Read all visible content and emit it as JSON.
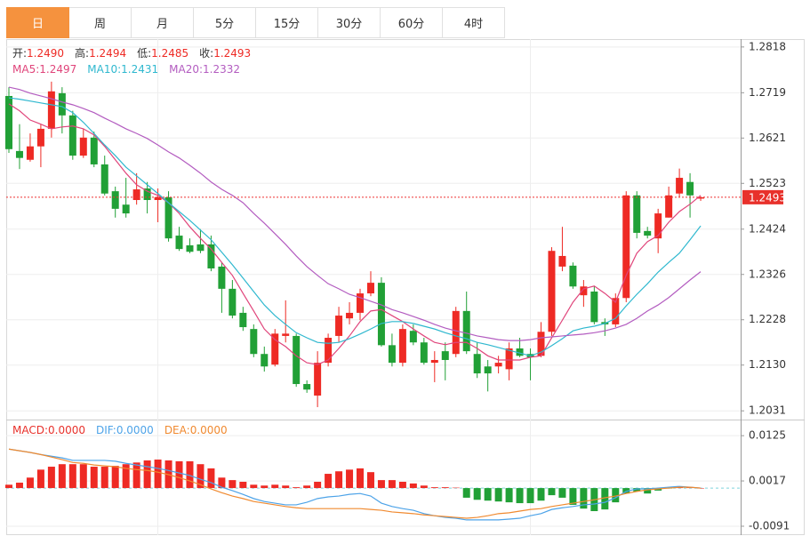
{
  "tabs": [
    "日",
    "周",
    "月",
    "5分",
    "15分",
    "30分",
    "60分",
    "4时"
  ],
  "active_tab": 0,
  "chart_data": [
    {
      "type": "candlestick",
      "ohlc_labels": [
        {
          "name": "开:",
          "value": "1.2490"
        },
        {
          "name": "高:",
          "value": "1.2494"
        },
        {
          "name": "低:",
          "value": "1.2485"
        },
        {
          "name": "收:",
          "value": "1.2493"
        }
      ],
      "up_color": "#ee2a24",
      "down_color": "#21a036",
      "candles": {
        "open": [
          1.2712,
          1.2593,
          1.2574,
          1.2603,
          1.2641,
          1.2718,
          1.267,
          1.2583,
          1.2622,
          1.2564,
          1.2506,
          1.2477,
          1.2487,
          1.2512,
          1.2487,
          1.2493,
          1.241,
          1.2389,
          1.2391,
          1.2391,
          1.2343,
          1.2295,
          1.2243,
          1.2208,
          1.2154,
          1.2131,
          1.2193,
          1.2193,
          1.2089,
          1.2064,
          1.2135,
          1.2193,
          1.2231,
          1.2243,
          1.2285,
          1.2308,
          1.2173,
          1.2135,
          1.2204,
          1.2179,
          1.2135,
          1.216,
          1.2154,
          1.2247,
          1.2154,
          1.2127,
          1.2127,
          1.2121,
          1.2166,
          1.2154,
          1.215,
          1.2202,
          1.2343,
          1.2345,
          1.2281,
          1.2289,
          1.2223,
          1.2218,
          1.2275,
          1.2497,
          1.242,
          1.2404,
          1.2449,
          1.2501,
          1.2526,
          1.249
        ],
        "high": [
          1.2731,
          1.2651,
          1.2631,
          1.2651,
          1.2743,
          1.2731,
          1.268,
          1.2641,
          1.2635,
          1.2583,
          1.2516,
          1.2535,
          1.2545,
          1.2526,
          1.2512,
          1.2506,
          1.2429,
          1.2404,
          1.2424,
          1.241,
          1.2352,
          1.2314,
          1.2256,
          1.2218,
          1.217,
          1.2208,
          1.227,
          1.2198,
          1.2097,
          1.216,
          1.2198,
          1.2256,
          1.2266,
          1.2295,
          1.2333,
          1.232,
          1.2198,
          1.2218,
          1.2218,
          1.2189,
          1.216,
          1.2179,
          1.2256,
          1.2289,
          1.2179,
          1.2141,
          1.215,
          1.2179,
          1.2189,
          1.2166,
          1.2223,
          1.2385,
          1.2429,
          1.2352,
          1.2314,
          1.23,
          1.2231,
          1.2285,
          1.2506,
          1.2506,
          1.2429,
          1.2468,
          1.2516,
          1.2555,
          1.2545,
          1.2494
        ],
        "low": [
          1.2589,
          1.2554,
          1.257,
          1.2558,
          1.2622,
          1.2631,
          1.2574,
          1.2578,
          1.2558,
          1.2497,
          1.2449,
          1.2449,
          1.2477,
          1.2458,
          1.2439,
          1.2397,
          1.2377,
          1.2372,
          1.2372,
          1.2333,
          1.2243,
          1.2231,
          1.2204,
          1.2147,
          1.2116,
          1.2127,
          1.2179,
          1.2083,
          1.207,
          1.2039,
          1.2127,
          1.2179,
          1.2218,
          1.2227,
          1.2279,
          1.217,
          1.2127,
          1.2127,
          1.2173,
          1.2131,
          1.2093,
          1.2097,
          1.2147,
          1.2154,
          1.2102,
          1.2073,
          1.2112,
          1.2097,
          1.2147,
          1.2097,
          1.2147,
          1.2193,
          1.2333,
          1.2295,
          1.2256,
          1.2218,
          1.2193,
          1.2212,
          1.2266,
          1.2404,
          1.2404,
          1.2372,
          1.2449,
          1.2493,
          1.2449,
          1.2485
        ],
        "close": [
          1.2597,
          1.2578,
          1.2603,
          1.2641,
          1.2722,
          1.267,
          1.2583,
          1.2622,
          1.2564,
          1.2501,
          1.2468,
          1.2458,
          1.251,
          1.2487,
          1.2493,
          1.2404,
          1.2381,
          1.2375,
          1.2377,
          1.2339,
          1.2295,
          1.2237,
          1.2212,
          1.2154,
          1.2127,
          1.2198,
          1.2198,
          1.2089,
          1.2077,
          1.2135,
          1.2189,
          1.2237,
          1.2243,
          1.2285,
          1.2308,
          1.2173,
          1.2135,
          1.2208,
          1.2179,
          1.2135,
          1.2141,
          1.2141,
          1.2247,
          1.216,
          1.2112,
          1.2112,
          1.2135,
          1.2166,
          1.215,
          1.2147,
          1.2202,
          1.2377,
          1.2366,
          1.23,
          1.23,
          1.2223,
          1.2218,
          1.2275,
          1.2497,
          1.2416,
          1.241,
          1.2458,
          1.2497,
          1.2535,
          1.2497,
          1.2493
        ]
      },
      "series": [
        {
          "name": "MA5:",
          "color": "#e0457b",
          "last_label": "1.2497",
          "values": [
            1.2695,
            1.268,
            1.266,
            1.2651,
            1.2641,
            1.2645,
            1.2647,
            1.2641,
            1.2628,
            1.2603,
            1.2574,
            1.2545,
            1.252,
            1.2506,
            1.2497,
            1.2481,
            1.2458,
            1.2429,
            1.2404,
            1.2381,
            1.2352,
            1.2324,
            1.2285,
            1.2247,
            1.2208,
            1.2185,
            1.217,
            1.215,
            1.2135,
            1.2131,
            1.2141,
            1.2166,
            1.2193,
            1.2224,
            1.2247,
            1.225,
            1.2237,
            1.2224,
            1.2208,
            1.2193,
            1.2179,
            1.2174,
            1.2179,
            1.2179,
            1.2166,
            1.215,
            1.2141,
            1.2141,
            1.2141,
            1.2147,
            1.215,
            1.2189,
            1.2227,
            1.2266,
            1.2295,
            1.2301,
            1.2285,
            1.2266,
            1.2324,
            1.2372,
            1.2397,
            1.241,
            1.2439,
            1.2462,
            1.2478,
            1.2497
          ]
        },
        {
          "name": "MA10:",
          "color": "#2fb8cf",
          "last_label": "1.2431",
          "values": [
            1.2708,
            1.2705,
            1.2701,
            1.2697,
            1.2693,
            1.2689,
            1.2676,
            1.2655,
            1.2631,
            1.2606,
            1.2583,
            1.2558,
            1.2539,
            1.252,
            1.2501,
            1.2481,
            1.2462,
            1.2443,
            1.2422,
            1.2401,
            1.2374,
            1.2347,
            1.2318,
            1.2289,
            1.226,
            1.2237,
            1.2218,
            1.22,
            1.2189,
            1.2179,
            1.2177,
            1.2179,
            1.2187,
            1.2197,
            1.2208,
            1.222,
            1.2224,
            1.2224,
            1.222,
            1.2214,
            1.2208,
            1.22,
            1.2193,
            1.2187,
            1.2179,
            1.2174,
            1.2168,
            1.2162,
            1.2156,
            1.215,
            1.2158,
            1.2172,
            1.2187,
            1.2204,
            1.221,
            1.2214,
            1.222,
            1.2231,
            1.2258,
            1.2283,
            1.2306,
            1.2331,
            1.2352,
            1.2372,
            1.2401,
            1.2431
          ]
        },
        {
          "name": "MA20:",
          "color": "#b35cc0",
          "last_label": "1.2332",
          "values": [
            1.2731,
            1.2726,
            1.2718,
            1.2712,
            1.2706,
            1.2699,
            1.2693,
            1.2685,
            1.2676,
            1.2664,
            1.2653,
            1.2641,
            1.2631,
            1.262,
            1.2606,
            1.2591,
            1.2578,
            1.2562,
            1.2545,
            1.2526,
            1.251,
            1.2497,
            1.2481,
            1.2458,
            1.2437,
            1.2414,
            1.2391,
            1.2366,
            1.2343,
            1.2324,
            1.2306,
            1.2295,
            1.2283,
            1.2276,
            1.2268,
            1.226,
            1.225,
            1.2243,
            1.2235,
            1.2227,
            1.2218,
            1.221,
            1.2204,
            1.2199,
            1.2193,
            1.2189,
            1.2185,
            1.2183,
            1.2183,
            1.2185,
            1.2189,
            1.2191,
            1.2193,
            1.2195,
            1.2197,
            1.22,
            1.2204,
            1.221,
            1.2218,
            1.2231,
            1.2247,
            1.226,
            1.2276,
            1.2295,
            1.2314,
            1.2332
          ]
        }
      ],
      "last_price": 1.2493,
      "ylim": [
        1.2016,
        1.2835
      ],
      "yticks": [
        1.2818,
        1.2719,
        1.2621,
        1.2523,
        1.2424,
        1.2326,
        1.2228,
        {
          "value": 1.213,
          "label": "1.2130"
        },
        1.2031
      ],
      "grid": true
    },
    {
      "type": "macd",
      "up_color": "#ee2a24",
      "down_color": "#21a036",
      "series": [
        {
          "name": "MACD:",
          "color": "#e8312b",
          "style": "bar",
          "last_label": "0.0000",
          "values": [
            0.0008,
            0.0013,
            0.0025,
            0.0044,
            0.0051,
            0.0057,
            0.0057,
            0.0057,
            0.0051,
            0.0051,
            0.0053,
            0.0057,
            0.0061,
            0.0066,
            0.0068,
            0.0066,
            0.0064,
            0.0064,
            0.0057,
            0.0047,
            0.0025,
            0.0019,
            0.0015,
            0.0008,
            0.0006,
            0.0008,
            0.0006,
            0.0002,
            0.0006,
            0.0015,
            0.0034,
            0.004,
            0.0044,
            0.0047,
            0.0038,
            0.0019,
            0.0019,
            0.0015,
            0.0011,
            0.0006,
            0.0002,
            0.0002,
            0.0001,
            -0.0023,
            -0.0028,
            -0.003,
            -0.0032,
            -0.0034,
            -0.0036,
            -0.0036,
            -0.003,
            -0.0017,
            -0.0023,
            -0.004,
            -0.0049,
            -0.0055,
            -0.0051,
            -0.0034,
            -0.0013,
            -0.0008,
            -0.0013,
            -0.0006,
            -0.0001,
            0.0004,
            0.0002,
            0
          ]
        },
        {
          "name": "DIF:",
          "color": "#4da3e8",
          "style": "line",
          "last_label": "0.0000",
          "values": [
            0.0093,
            0.0089,
            0.0085,
            0.008,
            0.0076,
            0.0072,
            0.0066,
            0.0066,
            0.0066,
            0.0066,
            0.0064,
            0.0059,
            0.0055,
            0.0051,
            0.0047,
            0.0042,
            0.0036,
            0.003,
            0.0021,
            0.0013,
            0.0002,
            -0.0006,
            -0.0015,
            -0.0025,
            -0.0032,
            -0.0036,
            -0.004,
            -0.004,
            -0.0034,
            -0.0025,
            -0.0021,
            -0.0019,
            -0.0015,
            -0.0013,
            -0.0019,
            -0.0036,
            -0.0044,
            -0.0049,
            -0.0053,
            -0.0061,
            -0.0066,
            -0.007,
            -0.0072,
            -0.0076,
            -0.0076,
            -0.0076,
            -0.0076,
            -0.0074,
            -0.0072,
            -0.0066,
            -0.0061,
            -0.0051,
            -0.0047,
            -0.0044,
            -0.004,
            -0.0038,
            -0.0034,
            -0.0023,
            -0.0008,
            -0.0002,
            -0.0002,
            0,
            0.0002,
            0.0004,
            0.0002,
            0
          ]
        },
        {
          "name": "DEA:",
          "color": "#f08a30",
          "style": "line",
          "last_label": "0.0000",
          "values": [
            0.0093,
            0.0089,
            0.0085,
            0.008,
            0.0074,
            0.0068,
            0.0061,
            0.0059,
            0.0055,
            0.0053,
            0.0051,
            0.0047,
            0.0044,
            0.0042,
            0.0038,
            0.0032,
            0.0025,
            0.0017,
            0.0008,
            -0.0002,
            -0.0011,
            -0.0019,
            -0.0025,
            -0.0032,
            -0.0036,
            -0.004,
            -0.0044,
            -0.0047,
            -0.0049,
            -0.0049,
            -0.0049,
            -0.0049,
            -0.0049,
            -0.0049,
            -0.0051,
            -0.0053,
            -0.0057,
            -0.0059,
            -0.0061,
            -0.0064,
            -0.0066,
            -0.0068,
            -0.007,
            -0.0072,
            -0.007,
            -0.0066,
            -0.0061,
            -0.0059,
            -0.0055,
            -0.0051,
            -0.0049,
            -0.0044,
            -0.004,
            -0.0036,
            -0.0032,
            -0.0028,
            -0.0023,
            -0.0019,
            -0.0013,
            -0.0008,
            -0.0004,
            -0.0002,
            0,
            0.0002,
            0.0002,
            0
          ]
        }
      ],
      "ylim": [
        -0.0108,
        0.0155
      ],
      "yticks": [
        0.0125,
        0.0017,
        -0.0091
      ],
      "grid": true
    }
  ]
}
